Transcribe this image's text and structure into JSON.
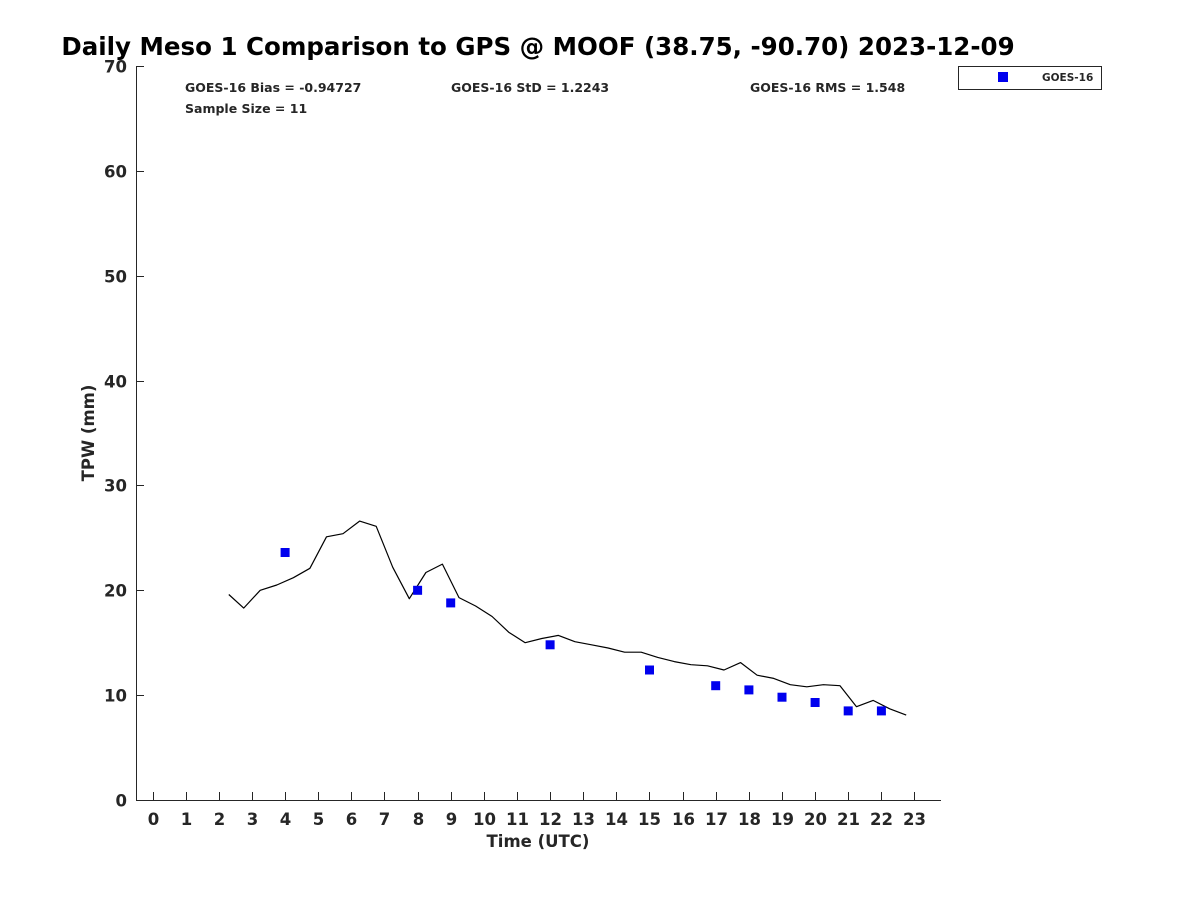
{
  "chart_data": {
    "type": "scatter",
    "title": "Daily Meso 1 Comparison to GPS @ MOOF (38.75, -90.70) 2023-12-09",
    "xlabel": "Time (UTC)",
    "ylabel": "TPW (mm)",
    "xlim": [
      -0.5,
      23.8
    ],
    "ylim": [
      0,
      70
    ],
    "x_ticks": [
      0,
      1,
      2,
      3,
      4,
      5,
      6,
      7,
      8,
      9,
      10,
      11,
      12,
      13,
      14,
      15,
      16,
      17,
      18,
      19,
      20,
      21,
      22,
      23
    ],
    "y_ticks": [
      0,
      10,
      20,
      30,
      40,
      50,
      60,
      70
    ],
    "grid": false,
    "legend_position": "top-right, outside plot",
    "stats": {
      "bias": "GOES-16 Bias = -0.94727",
      "std": "GOES-16 StD = 1.2243",
      "rms": "GOES-16 RMS = 1.548",
      "sample_size": "Sample Size = 11"
    },
    "series": [
      {
        "name": "GOES-16",
        "kind": "scatter",
        "marker": "square",
        "color": "#0000ee",
        "x": [
          4,
          8,
          9,
          12,
          15,
          17,
          18,
          19,
          20,
          21,
          22
        ],
        "y": [
          23.6,
          20.0,
          18.8,
          14.8,
          12.4,
          10.9,
          10.5,
          9.8,
          9.3,
          8.5,
          8.5
        ]
      },
      {
        "kind": "line",
        "color": "#000000",
        "x": [
          2.3,
          2.75,
          3.25,
          3.75,
          4.25,
          4.75,
          5.25,
          5.75,
          6.25,
          6.75,
          7.25,
          7.75,
          8.25,
          8.75,
          9.25,
          9.75,
          10.25,
          10.75,
          11.25,
          11.75,
          12.25,
          12.75,
          13.25,
          13.75,
          14.25,
          14.75,
          15.25,
          15.75,
          16.25,
          16.75,
          17.25,
          17.75,
          18.25,
          18.75,
          19.25,
          19.75,
          20.25,
          20.75,
          21.25,
          21.75,
          22.25,
          22.75
        ],
        "y": [
          19.6,
          18.3,
          20.0,
          20.5,
          21.2,
          22.1,
          25.1,
          25.4,
          26.6,
          26.1,
          22.2,
          19.2,
          21.7,
          22.5,
          19.3,
          18.5,
          17.5,
          16.0,
          15.0,
          15.4,
          15.7,
          15.1,
          14.8,
          14.5,
          14.1,
          14.1,
          13.6,
          13.2,
          12.9,
          12.8,
          12.4,
          13.1,
          11.9,
          11.6,
          11.0,
          10.8,
          11.0,
          10.9,
          8.9,
          9.5,
          8.7,
          8.1
        ]
      }
    ]
  }
}
